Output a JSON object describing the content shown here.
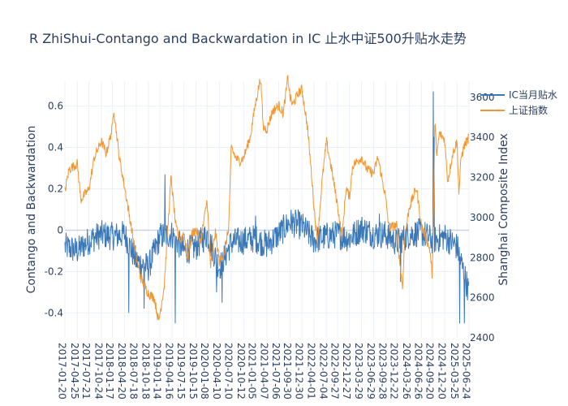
{
  "title": "R    ZhiShui-Contango and Backwardation in IC    止水中证500升贴水走势",
  "chart_data": {
    "type": "line",
    "title": "R    ZhiShui-Contango and Backwardation in IC    止水中证500升贴水走势",
    "ylabel": "Contango and Backwardation",
    "y2label": "Shanghai Composite Index",
    "ylim": [
      -0.52,
      0.72
    ],
    "y2lim": [
      2400,
      3680
    ],
    "y_ticks": [
      "0.6",
      "0.4",
      "0.2",
      "0",
      "-0.2",
      "-0.4"
    ],
    "y_tick_values": [
      0.6,
      0.4,
      0.2,
      0,
      -0.2,
      -0.4
    ],
    "y2_ticks": [
      "3600",
      "3400",
      "3200",
      "3000",
      "2800",
      "2600",
      "2400"
    ],
    "y2_tick_values": [
      3600,
      3400,
      3200,
      3000,
      2800,
      2600,
      2400
    ],
    "x_ticks": [
      "2017-01-20",
      "2017-04-25",
      "2017-07-21",
      "2017-10-24",
      "2018-01-17",
      "2018-04-20",
      "2018-07-18",
      "2018-10-18",
      "2019-01-14",
      "2019-04-16",
      "2019-07-15",
      "2019-10-15",
      "2020-01-08",
      "2020-04-10",
      "2020-07-10",
      "2020-10-12",
      "2021-01-05",
      "2021-04-07",
      "2021-07-06",
      "2021-09-30",
      "2021-12-30",
      "2022-04-01",
      "2022-07-04",
      "2022-09-27",
      "2022-12-27",
      "2023-03-29",
      "2023-06-29",
      "2023-09-28",
      "2023-12-22",
      "2024-03-26",
      "2024-06-26",
      "2024-09-20",
      "2024-12-20",
      "2025-03-25",
      "2025-06-24"
    ],
    "x_range": [
      "2017-01-20",
      "2025-06-24"
    ],
    "legend_position": "top-right",
    "grid": true,
    "series": [
      {
        "name": "IC当月贴水",
        "color": "#3a78b8",
        "axis": "y",
        "anchors_x": [
          "2017-01-20",
          "2017-04-25",
          "2017-07-21",
          "2017-10-24",
          "2018-01-17",
          "2018-04-20",
          "2018-07-18",
          "2018-10-18",
          "2019-01-14",
          "2019-04-16",
          "2019-07-15",
          "2019-10-15",
          "2020-01-08",
          "2020-04-10",
          "2020-07-10",
          "2020-10-12",
          "2021-01-05",
          "2021-04-07",
          "2021-07-06",
          "2021-09-30",
          "2021-12-30",
          "2022-04-01",
          "2022-07-04",
          "2022-09-27",
          "2022-12-27",
          "2023-03-29",
          "2023-06-29",
          "2023-09-28",
          "2023-12-22",
          "2024-03-26",
          "2024-06-26",
          "2024-09-20",
          "2024-12-20",
          "2025-03-25",
          "2025-06-24"
        ],
        "anchors_y": [
          -0.08,
          -0.1,
          -0.05,
          -0.02,
          -0.03,
          -0.02,
          -0.15,
          -0.18,
          -0.03,
          -0.02,
          -0.1,
          -0.08,
          -0.02,
          -0.18,
          -0.06,
          -0.05,
          -0.04,
          -0.07,
          -0.02,
          0.04,
          0.02,
          -0.05,
          -0.03,
          -0.02,
          -0.04,
          0.01,
          -0.02,
          -0.02,
          -0.06,
          -0.02,
          -0.01,
          -0.05,
          -0.03,
          -0.08,
          -0.3
        ],
        "spikes": [
          [
            "2018-05-20",
            -0.4
          ],
          [
            "2018-09-15",
            -0.38
          ],
          [
            "2019-02-20",
            0.27
          ],
          [
            "2019-05-10",
            -0.45
          ],
          [
            "2020-03-20",
            -0.3
          ],
          [
            "2020-05-01",
            -0.35
          ],
          [
            "2021-01-10",
            0.07
          ],
          [
            "2021-12-01",
            0.1
          ],
          [
            "2023-08-10",
            0.08
          ],
          [
            "2024-01-20",
            -0.25
          ],
          [
            "2024-09-24",
            0.67
          ],
          [
            "2024-10-01",
            0.45
          ],
          [
            "2025-04-15",
            -0.45
          ],
          [
            "2025-05-20",
            -0.45
          ]
        ]
      },
      {
        "name": "上证指数",
        "color": "#f4962f",
        "axis": "y2",
        "dates": [
          "2017-01-20",
          "2017-02-20",
          "2017-04-25",
          "2017-05-20",
          "2017-07-21",
          "2017-09-01",
          "2017-10-24",
          "2017-12-01",
          "2018-01-17",
          "2018-01-26",
          "2018-03-10",
          "2018-04-20",
          "2018-06-10",
          "2018-07-18",
          "2018-08-20",
          "2018-10-18",
          "2018-12-01",
          "2019-01-04",
          "2019-02-15",
          "2019-03-10",
          "2019-04-08",
          "2019-05-15",
          "2019-06-20",
          "2019-07-15",
          "2019-08-10",
          "2019-09-15",
          "2019-10-15",
          "2019-11-20",
          "2020-01-08",
          "2020-02-03",
          "2020-03-10",
          "2020-04-10",
          "2020-05-20",
          "2020-06-20",
          "2020-07-10",
          "2020-08-10",
          "2020-09-10",
          "2020-10-12",
          "2020-12-01",
          "2021-01-05",
          "2021-02-18",
          "2021-03-10",
          "2021-04-07",
          "2021-05-20",
          "2021-07-06",
          "2021-08-10",
          "2021-09-14",
          "2021-09-30",
          "2021-10-20",
          "2021-12-01",
          "2021-12-30",
          "2022-02-10",
          "2022-03-15",
          "2022-04-01",
          "2022-04-27",
          "2022-06-01",
          "2022-07-04",
          "2022-08-10",
          "2022-09-27",
          "2022-10-31",
          "2022-12-01",
          "2022-12-27",
          "2023-01-20",
          "2023-03-29",
          "2023-05-10",
          "2023-06-29",
          "2023-07-31",
          "2023-09-28",
          "2023-10-23",
          "2023-12-22",
          "2024-01-10",
          "2024-02-05",
          "2024-02-20",
          "2024-03-26",
          "2024-05-20",
          "2024-06-26",
          "2024-07-20",
          "2024-08-30",
          "2024-09-18",
          "2024-10-08",
          "2024-10-20",
          "2024-11-10",
          "2024-12-20",
          "2025-01-13",
          "2025-02-20",
          "2025-03-25",
          "2025-04-08",
          "2025-04-25",
          "2025-05-20",
          "2025-06-24"
        ],
        "values": [
          3130,
          3240,
          3270,
          3090,
          3140,
          3300,
          3380,
          3320,
          3450,
          3550,
          3300,
          3150,
          2950,
          2800,
          2700,
          2620,
          2600,
          2480,
          2660,
          2900,
          3200,
          2950,
          2880,
          2930,
          2780,
          2920,
          2940,
          2880,
          3090,
          2750,
          2930,
          2780,
          2830,
          2950,
          3350,
          3300,
          3280,
          3300,
          3400,
          3550,
          3700,
          3450,
          3440,
          3530,
          3560,
          3520,
          3700,
          3600,
          3560,
          3620,
          3640,
          3450,
          3200,
          3050,
          2880,
          3180,
          3380,
          3250,
          3060,
          2900,
          3150,
          3100,
          3260,
          3300,
          3240,
          3220,
          3300,
          3100,
          2950,
          2960,
          2800,
          2650,
          2900,
          3050,
          3150,
          2960,
          2920,
          2840,
          2700,
          3490,
          3300,
          3420,
          3390,
          3180,
          3320,
          3380,
          3120,
          3300,
          3360,
          3400
        ]
      }
    ]
  }
}
